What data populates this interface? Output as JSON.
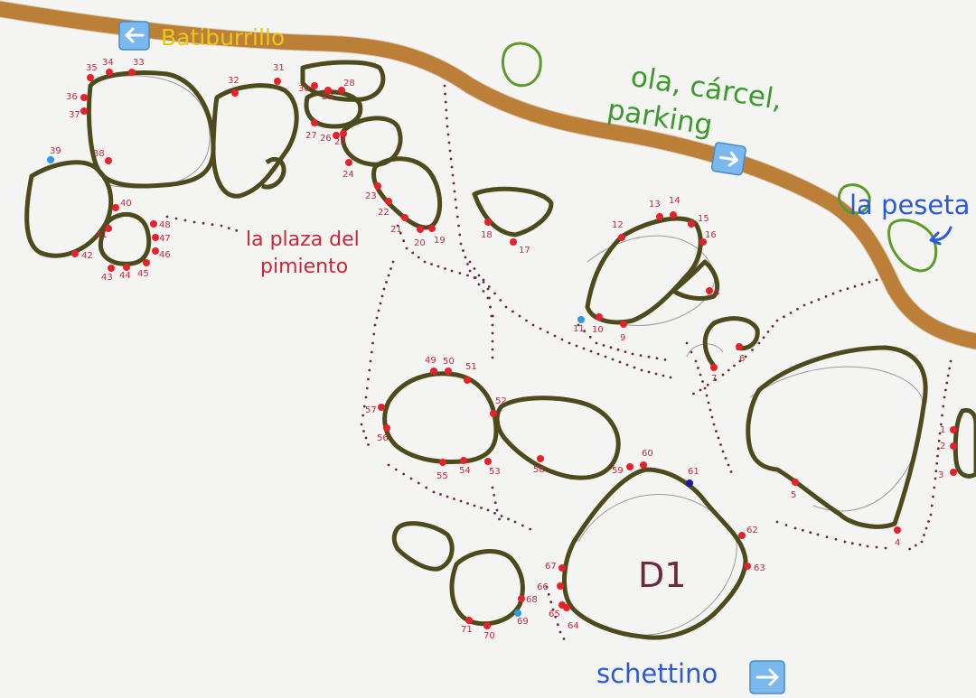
{
  "labels": {
    "batiburrillo": "Batiburrillo",
    "ola_1": "ola, cárcel,",
    "ola_2": "parking",
    "peseta": "la peseta",
    "plaza_1": "la plaza del",
    "plaza_2": "pimiento",
    "schettino": "schettino",
    "d1": "D1"
  },
  "icons": {
    "batiburrillo_arrow": "arrow-left-icon",
    "parking_arrow": "arrow-right-icon",
    "schettino_arrow": "arrow-right-icon",
    "peseta_arrow": "curved-arrow-icon"
  },
  "colors": {
    "road": "#b8782c",
    "boulder_outline": "#4d4a1c",
    "problem_point": "#e8202a",
    "problem_point_alt": "#2a9ae8",
    "tree": "#5c9a2a",
    "label_green": "#3a9a2a",
    "label_blue": "#2a5ad8",
    "label_yellow": "#e8c81a",
    "label_red": "#c8283a"
  },
  "problems": [
    {
      "n": "1",
      "c": "red"
    },
    {
      "n": "2",
      "c": "red"
    },
    {
      "n": "3",
      "c": "red"
    },
    {
      "n": "4",
      "c": "red"
    },
    {
      "n": "5",
      "c": "red"
    },
    {
      "n": "6",
      "c": "red"
    },
    {
      "n": "7",
      "c": "red"
    },
    {
      "n": "8",
      "c": "red"
    },
    {
      "n": "9",
      "c": "red"
    },
    {
      "n": "10",
      "c": "red"
    },
    {
      "n": "11",
      "c": "blue"
    },
    {
      "n": "12",
      "c": "red"
    },
    {
      "n": "13",
      "c": "red"
    },
    {
      "n": "14",
      "c": "red"
    },
    {
      "n": "15",
      "c": "red"
    },
    {
      "n": "16",
      "c": "red"
    },
    {
      "n": "17",
      "c": "red"
    },
    {
      "n": "18",
      "c": "red"
    },
    {
      "n": "19",
      "c": "red"
    },
    {
      "n": "20",
      "c": "red"
    },
    {
      "n": "21",
      "c": "red"
    },
    {
      "n": "22",
      "c": "red"
    },
    {
      "n": "23",
      "c": "red"
    },
    {
      "n": "24",
      "c": "red"
    },
    {
      "n": "25",
      "c": "red"
    },
    {
      "n": "26",
      "c": "red"
    },
    {
      "n": "27",
      "c": "red"
    },
    {
      "n": "28",
      "c": "red"
    },
    {
      "n": "29",
      "c": "red"
    },
    {
      "n": "30",
      "c": "red"
    },
    {
      "n": "31",
      "c": "red"
    },
    {
      "n": "32",
      "c": "red"
    },
    {
      "n": "33",
      "c": "red"
    },
    {
      "n": "34",
      "c": "red"
    },
    {
      "n": "35",
      "c": "red"
    },
    {
      "n": "36",
      "c": "red"
    },
    {
      "n": "37",
      "c": "red"
    },
    {
      "n": "38",
      "c": "red"
    },
    {
      "n": "39",
      "c": "blue"
    },
    {
      "n": "40",
      "c": "red"
    },
    {
      "n": "41",
      "c": "red"
    },
    {
      "n": "42",
      "c": "red"
    },
    {
      "n": "43",
      "c": "red"
    },
    {
      "n": "44",
      "c": "red"
    },
    {
      "n": "45",
      "c": "red"
    },
    {
      "n": "46",
      "c": "red"
    },
    {
      "n": "47",
      "c": "red"
    },
    {
      "n": "48",
      "c": "red"
    },
    {
      "n": "49",
      "c": "red"
    },
    {
      "n": "50",
      "c": "red"
    },
    {
      "n": "51",
      "c": "red"
    },
    {
      "n": "52",
      "c": "red"
    },
    {
      "n": "53",
      "c": "red"
    },
    {
      "n": "54",
      "c": "red"
    },
    {
      "n": "55",
      "c": "red"
    },
    {
      "n": "56",
      "c": "red"
    },
    {
      "n": "57",
      "c": "red"
    },
    {
      "n": "58",
      "c": "red"
    },
    {
      "n": "59",
      "c": "red"
    },
    {
      "n": "60",
      "c": "red"
    },
    {
      "n": "61",
      "c": "navy"
    },
    {
      "n": "62",
      "c": "red"
    },
    {
      "n": "63",
      "c": "red"
    },
    {
      "n": "64",
      "c": "red"
    },
    {
      "n": "65",
      "c": "red"
    },
    {
      "n": "66",
      "c": "red"
    },
    {
      "n": "67",
      "c": "red"
    },
    {
      "n": "68",
      "c": "red"
    },
    {
      "n": "69",
      "c": "blue"
    },
    {
      "n": "70",
      "c": "red"
    },
    {
      "n": "71",
      "c": "red"
    }
  ]
}
